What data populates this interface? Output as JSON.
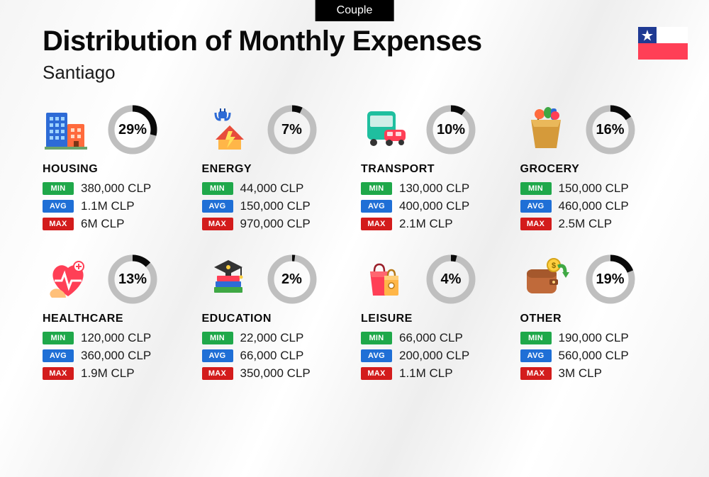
{
  "badge": "Couple",
  "title": "Distribution of Monthly Expenses",
  "subtitle": "Santiago",
  "flag": {
    "blue": "#1f3a93",
    "red": "#ff3f56",
    "white": "#ffffff",
    "star": "#ffffff"
  },
  "donut": {
    "track_color": "#bfbfbf",
    "fill_color": "#0a0a0a",
    "thickness": 9,
    "radius": 30
  },
  "pill_colors": {
    "min": "#1fa84a",
    "avg": "#1f6fd6",
    "max": "#d31c1c"
  },
  "labels": {
    "min": "MIN",
    "avg": "AVG",
    "max": "MAX"
  },
  "categories": [
    {
      "key": "housing",
      "name": "HOUSING",
      "percent": 29,
      "percent_label": "29%",
      "min": "380,000 CLP",
      "avg": "1.1M CLP",
      "max": "6M CLP"
    },
    {
      "key": "energy",
      "name": "ENERGY",
      "percent": 7,
      "percent_label": "7%",
      "min": "44,000 CLP",
      "avg": "150,000 CLP",
      "max": "970,000 CLP"
    },
    {
      "key": "transport",
      "name": "TRANSPORT",
      "percent": 10,
      "percent_label": "10%",
      "min": "130,000 CLP",
      "avg": "400,000 CLP",
      "max": "2.1M CLP"
    },
    {
      "key": "grocery",
      "name": "GROCERY",
      "percent": 16,
      "percent_label": "16%",
      "min": "150,000 CLP",
      "avg": "460,000 CLP",
      "max": "2.5M CLP"
    },
    {
      "key": "healthcare",
      "name": "HEALTHCARE",
      "percent": 13,
      "percent_label": "13%",
      "min": "120,000 CLP",
      "avg": "360,000 CLP",
      "max": "1.9M CLP"
    },
    {
      "key": "education",
      "name": "EDUCATION",
      "percent": 2,
      "percent_label": "2%",
      "min": "22,000 CLP",
      "avg": "66,000 CLP",
      "max": "350,000 CLP"
    },
    {
      "key": "leisure",
      "name": "LEISURE",
      "percent": 4,
      "percent_label": "4%",
      "min": "66,000 CLP",
      "avg": "200,000 CLP",
      "max": "1.1M CLP"
    },
    {
      "key": "other",
      "name": "OTHER",
      "percent": 19,
      "percent_label": "19%",
      "min": "190,000 CLP",
      "avg": "560,000 CLP",
      "max": "3M CLP"
    }
  ]
}
